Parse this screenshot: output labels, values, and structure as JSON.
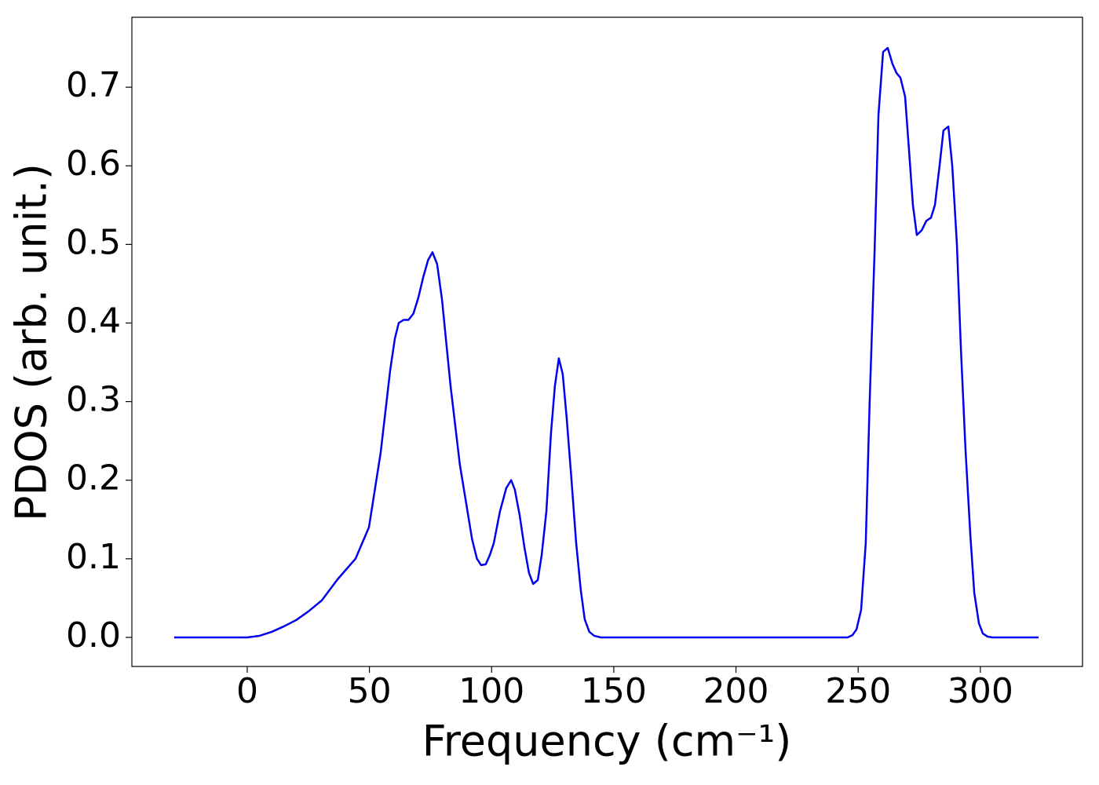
{
  "chart_data": {
    "type": "line",
    "xlabel": "Frequency (cm⁻¹)",
    "ylabel": "PDOS (arb. unit.)",
    "xlim": [
      -47.2,
      341.8
    ],
    "ylim": [
      -0.037,
      0.789
    ],
    "xticks": [
      0,
      50,
      100,
      150,
      200,
      250,
      300
    ],
    "yticks": [
      {
        "value": 0,
        "label": "0.0"
      },
      0.1,
      0.2,
      0.3,
      0.4,
      0.5,
      0.6,
      0.7
    ],
    "grid": false,
    "series": [
      {
        "color": "#0000ee",
        "x": [
          -29.9,
          0,
          5,
          10,
          15,
          20,
          25,
          30.5,
          37,
          44.3,
          49.8,
          54.6,
          58.5,
          60.4,
          62,
          64,
          66,
          68,
          70,
          72,
          74,
          75.8,
          77.7,
          79.7,
          83.2,
          87,
          92,
          94,
          95.7,
          97.6,
          99.3,
          100.9,
          103.4,
          106,
          108,
          109.5,
          111.5,
          113.4,
          115.3,
          117,
          118.9,
          120.5,
          122.4,
          124.3,
          125.9,
          127.5,
          129.1,
          130.7,
          132.7,
          134.6,
          136.5,
          138.1,
          140,
          142,
          144.6,
          245.7,
          247.7,
          249.3,
          251.2,
          253.1,
          254.7,
          256.7,
          258.3,
          260.2,
          262.1,
          264,
          265.7,
          267.3,
          269.2,
          270.8,
          272.4,
          274,
          276,
          277.9,
          279.8,
          281.4,
          283.3,
          284.9,
          286.9,
          288.5,
          290.4,
          292,
          293.9,
          295.9,
          297.5,
          299.4,
          301,
          302.9,
          304.9,
          323.8
        ],
        "values": [
          0,
          0,
          0.002,
          0.007,
          0.014,
          0.022,
          0.033,
          0.047,
          0.074,
          0.1,
          0.14,
          0.235,
          0.34,
          0.38,
          0.4,
          0.404,
          0.404,
          0.412,
          0.432,
          0.458,
          0.48,
          0.49,
          0.475,
          0.43,
          0.32,
          0.22,
          0.125,
          0.1,
          0.092,
          0.093,
          0.105,
          0.12,
          0.16,
          0.19,
          0.2,
          0.188,
          0.155,
          0.115,
          0.082,
          0.068,
          0.073,
          0.105,
          0.16,
          0.26,
          0.32,
          0.355,
          0.335,
          0.28,
          0.2,
          0.12,
          0.06,
          0.023,
          0.007,
          0.002,
          0,
          0,
          0.003,
          0.01,
          0.035,
          0.12,
          0.3,
          0.49,
          0.665,
          0.745,
          0.75,
          0.73,
          0.718,
          0.712,
          0.688,
          0.62,
          0.55,
          0.512,
          0.518,
          0.53,
          0.534,
          0.55,
          0.6,
          0.645,
          0.65,
          0.6,
          0.5,
          0.37,
          0.24,
          0.13,
          0.057,
          0.018,
          0.005,
          0.001,
          0,
          0
        ]
      }
    ]
  }
}
